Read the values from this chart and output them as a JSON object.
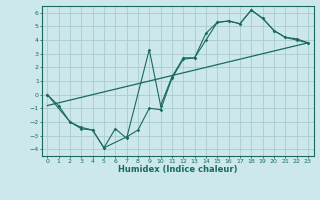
{
  "xlabel": "Humidex (Indice chaleur)",
  "ylabel": "",
  "bg_color": "#cce8ec",
  "line_color": "#1a6b5a",
  "grid_color": "#aacccc",
  "xlim": [
    -0.5,
    23.5
  ],
  "ylim": [
    -4.5,
    6.5
  ],
  "xticks": [
    0,
    1,
    2,
    3,
    4,
    5,
    6,
    7,
    8,
    9,
    10,
    11,
    12,
    13,
    14,
    15,
    16,
    17,
    18,
    19,
    20,
    21,
    22,
    23
  ],
  "yticks": [
    -4,
    -3,
    -2,
    -1,
    0,
    1,
    2,
    3,
    4,
    5,
    6
  ],
  "series1_x": [
    0,
    1,
    2,
    3,
    4,
    5,
    6,
    7,
    9,
    10,
    11,
    12,
    13,
    14,
    15,
    16,
    17,
    18,
    19,
    20,
    21,
    22,
    23
  ],
  "series1_y": [
    0,
    -0.8,
    -2.0,
    -2.5,
    -2.6,
    -3.9,
    -2.5,
    -3.2,
    3.3,
    -0.8,
    1.3,
    2.7,
    2.7,
    4.5,
    5.3,
    5.4,
    5.2,
    6.2,
    5.6,
    4.7,
    4.2,
    4.0,
    3.8
  ],
  "series2_x": [
    0,
    2,
    3,
    4,
    5,
    7,
    8,
    9,
    10,
    11,
    12,
    13,
    14,
    15,
    16,
    17,
    18,
    19,
    20,
    21,
    22,
    23
  ],
  "series2_y": [
    0,
    -2.0,
    -2.4,
    -2.6,
    -3.9,
    -3.1,
    -2.6,
    -1.0,
    -1.1,
    1.2,
    2.6,
    2.7,
    4.0,
    5.3,
    5.4,
    5.2,
    6.2,
    5.6,
    4.7,
    4.2,
    4.1,
    3.8
  ],
  "series3_x": [
    0,
    23
  ],
  "series3_y": [
    -0.8,
    3.8
  ]
}
